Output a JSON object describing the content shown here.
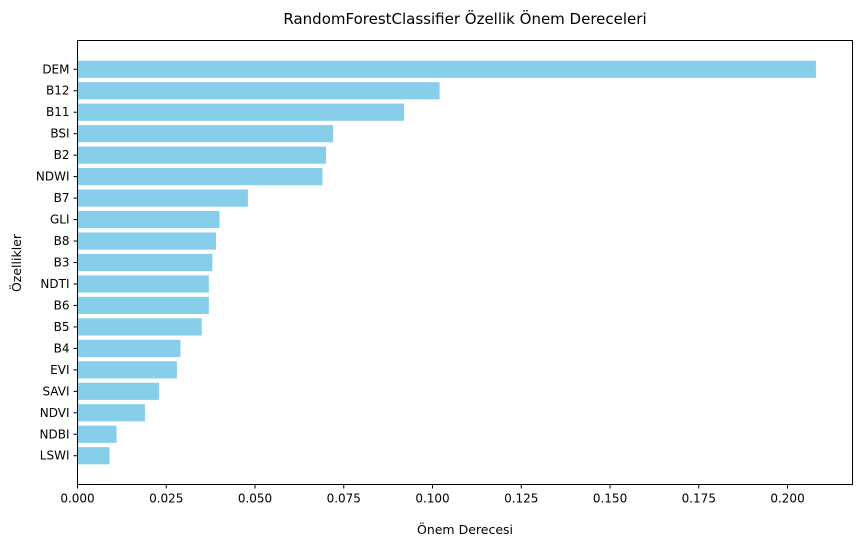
{
  "chart_data": {
    "type": "bar",
    "orientation": "horizontal",
    "title": "RandomForestClassifier Özellik Önem Dereceleri",
    "xlabel": "Önem Derecesi",
    "ylabel": "Özellikler",
    "categories": [
      "DEM",
      "B12",
      "B11",
      "BSI",
      "B2",
      "NDWI",
      "B7",
      "GLI",
      "B8",
      "B3",
      "NDTI",
      "B6",
      "B5",
      "B4",
      "EVI",
      "SAVI",
      "NDVI",
      "NDBI",
      "LSWI"
    ],
    "values": [
      0.208,
      0.102,
      0.092,
      0.072,
      0.07,
      0.069,
      0.048,
      0.04,
      0.039,
      0.038,
      0.037,
      0.037,
      0.035,
      0.029,
      0.028,
      0.023,
      0.019,
      0.011,
      0.009
    ],
    "xlim": [
      0,
      0.2183
    ],
    "xticks": [
      0,
      0.025,
      0.05,
      0.075,
      0.1,
      0.125,
      0.15,
      0.175,
      0.2
    ],
    "xtick_labels": [
      "0.000",
      "0.025",
      "0.050",
      "0.075",
      "0.100",
      "0.125",
      "0.150",
      "0.175",
      "0.200"
    ],
    "bar_color": "#87CEEB",
    "grid": false,
    "legend": "none"
  }
}
